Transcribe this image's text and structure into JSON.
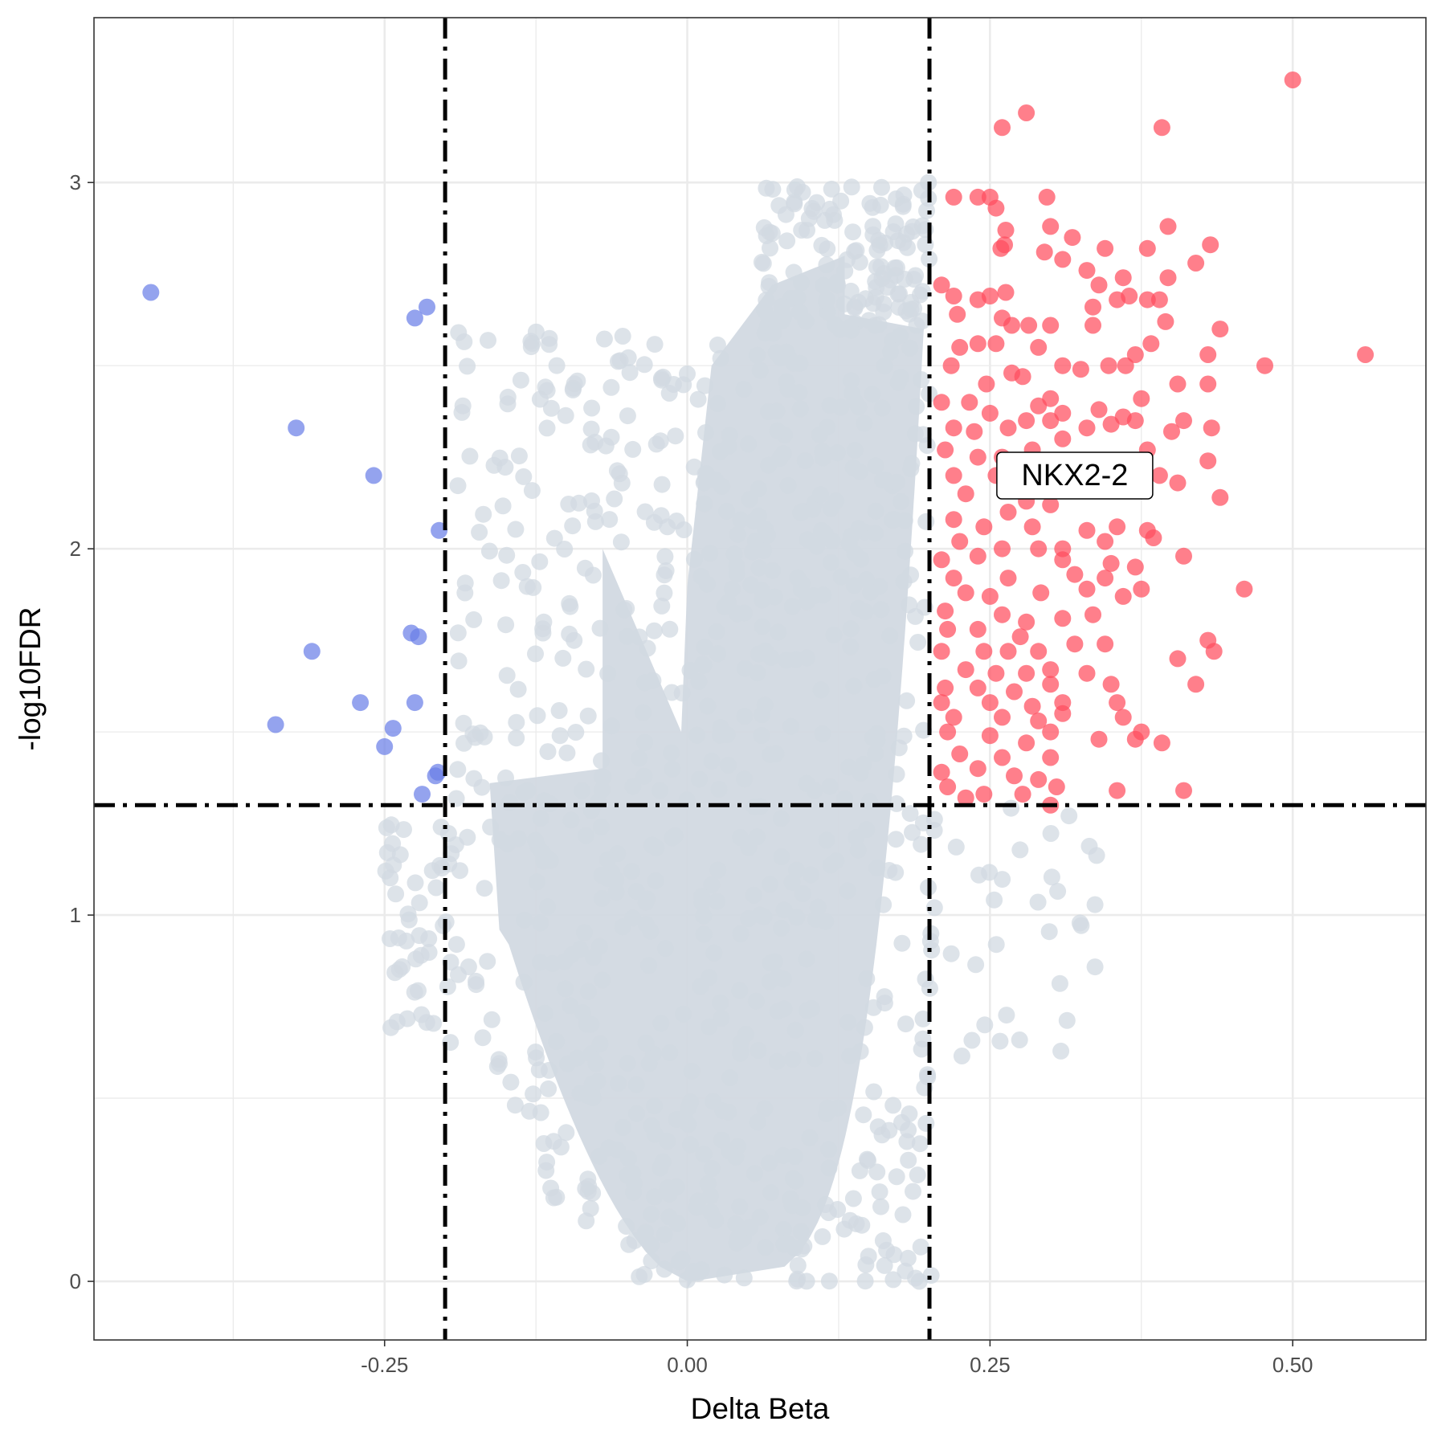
{
  "chart_data": {
    "type": "scatter",
    "title": "",
    "xlabel": "Delta Beta",
    "ylabel": "-log10FDR",
    "xlim": [
      -0.49,
      0.61
    ],
    "ylim": [
      -0.16,
      3.45
    ],
    "x_ticks": [
      -0.25,
      0.0,
      0.25,
      0.5
    ],
    "x_tick_labels": [
      "-0.25",
      "0.00",
      "0.25",
      "0.50"
    ],
    "y_ticks": [
      0,
      1,
      2,
      3
    ],
    "y_tick_labels": [
      "0",
      "1",
      "2",
      "3"
    ],
    "grid": true,
    "legend": "none",
    "thresholds": {
      "delta_beta": [
        -0.2,
        0.2
      ],
      "neg_log10_fdr": 1.3
    },
    "colors": {
      "hypo": "#6b7fe8",
      "hyper": "#ff4d5e",
      "ns": "#d2d9e1",
      "grid": "#ebebeb",
      "threshold_line": "#000000"
    },
    "annotations": [
      {
        "label": "NKX2-2",
        "x": 0.32,
        "y": 2.2
      }
    ],
    "series": [
      {
        "name": "Hypomethylated",
        "color": "#6b7fe8",
        "points": [
          [
            -0.443,
            2.7
          ],
          [
            -0.323,
            2.33
          ],
          [
            -0.31,
            1.72
          ],
          [
            -0.34,
            1.52
          ],
          [
            -0.259,
            2.2
          ],
          [
            -0.27,
            1.58
          ],
          [
            -0.25,
            1.46
          ],
          [
            -0.243,
            1.51
          ],
          [
            -0.225,
            2.63
          ],
          [
            -0.215,
            2.66
          ],
          [
            -0.228,
            1.77
          ],
          [
            -0.222,
            1.76
          ],
          [
            -0.225,
            1.58
          ],
          [
            -0.205,
            2.05
          ],
          [
            -0.208,
            1.38
          ],
          [
            -0.206,
            1.39
          ],
          [
            -0.219,
            1.33
          ]
        ]
      },
      {
        "name": "Hypermethylated",
        "color": "#ff4d5e",
        "points": [
          [
            0.5,
            3.28
          ],
          [
            0.28,
            3.19
          ],
          [
            0.26,
            3.15
          ],
          [
            0.392,
            3.15
          ],
          [
            0.22,
            2.96
          ],
          [
            0.24,
            2.96
          ],
          [
            0.25,
            2.96
          ],
          [
            0.297,
            2.96
          ],
          [
            0.255,
            2.93
          ],
          [
            0.397,
            2.88
          ],
          [
            0.318,
            2.85
          ],
          [
            0.3,
            2.88
          ],
          [
            0.263,
            2.87
          ],
          [
            0.262,
            2.83
          ],
          [
            0.259,
            2.82
          ],
          [
            0.295,
            2.81
          ],
          [
            0.31,
            2.79
          ],
          [
            0.345,
            2.82
          ],
          [
            0.38,
            2.82
          ],
          [
            0.432,
            2.83
          ],
          [
            0.42,
            2.78
          ],
          [
            0.33,
            2.76
          ],
          [
            0.36,
            2.74
          ],
          [
            0.397,
            2.74
          ],
          [
            0.34,
            2.72
          ],
          [
            0.21,
            2.72
          ],
          [
            0.22,
            2.69
          ],
          [
            0.24,
            2.68
          ],
          [
            0.25,
            2.69
          ],
          [
            0.263,
            2.7
          ],
          [
            0.335,
            2.66
          ],
          [
            0.355,
            2.68
          ],
          [
            0.365,
            2.69
          ],
          [
            0.38,
            2.68
          ],
          [
            0.39,
            2.68
          ],
          [
            0.223,
            2.64
          ],
          [
            0.26,
            2.63
          ],
          [
            0.268,
            2.61
          ],
          [
            0.282,
            2.61
          ],
          [
            0.3,
            2.61
          ],
          [
            0.335,
            2.61
          ],
          [
            0.395,
            2.62
          ],
          [
            0.44,
            2.6
          ],
          [
            0.225,
            2.55
          ],
          [
            0.24,
            2.56
          ],
          [
            0.255,
            2.56
          ],
          [
            0.29,
            2.55
          ],
          [
            0.383,
            2.56
          ],
          [
            0.37,
            2.53
          ],
          [
            0.43,
            2.53
          ],
          [
            0.56,
            2.53
          ],
          [
            0.477,
            2.5
          ],
          [
            0.218,
            2.5
          ],
          [
            0.247,
            2.45
          ],
          [
            0.268,
            2.48
          ],
          [
            0.277,
            2.47
          ],
          [
            0.31,
            2.5
          ],
          [
            0.325,
            2.49
          ],
          [
            0.348,
            2.5
          ],
          [
            0.362,
            2.5
          ],
          [
            0.405,
            2.45
          ],
          [
            0.43,
            2.45
          ],
          [
            0.21,
            2.4
          ],
          [
            0.233,
            2.4
          ],
          [
            0.25,
            2.37
          ],
          [
            0.29,
            2.39
          ],
          [
            0.3,
            2.41
          ],
          [
            0.34,
            2.38
          ],
          [
            0.36,
            2.36
          ],
          [
            0.375,
            2.41
          ],
          [
            0.22,
            2.33
          ],
          [
            0.237,
            2.32
          ],
          [
            0.265,
            2.33
          ],
          [
            0.28,
            2.35
          ],
          [
            0.3,
            2.35
          ],
          [
            0.31,
            2.37
          ],
          [
            0.33,
            2.33
          ],
          [
            0.35,
            2.34
          ],
          [
            0.37,
            2.35
          ],
          [
            0.41,
            2.35
          ],
          [
            0.433,
            2.33
          ],
          [
            0.4,
            2.32
          ],
          [
            0.213,
            2.27
          ],
          [
            0.24,
            2.25
          ],
          [
            0.26,
            2.25
          ],
          [
            0.285,
            2.27
          ],
          [
            0.31,
            2.3
          ],
          [
            0.38,
            2.27
          ],
          [
            0.43,
            2.24
          ],
          [
            0.22,
            2.2
          ],
          [
            0.255,
            2.2
          ],
          [
            0.39,
            2.2
          ],
          [
            0.405,
            2.18
          ],
          [
            0.23,
            2.15
          ],
          [
            0.265,
            2.1
          ],
          [
            0.28,
            2.13
          ],
          [
            0.3,
            2.12
          ],
          [
            0.44,
            2.14
          ],
          [
            0.22,
            2.08
          ],
          [
            0.245,
            2.06
          ],
          [
            0.285,
            2.06
          ],
          [
            0.33,
            2.05
          ],
          [
            0.355,
            2.06
          ],
          [
            0.38,
            2.05
          ],
          [
            0.385,
            2.03
          ],
          [
            0.225,
            2.02
          ],
          [
            0.26,
            2.0
          ],
          [
            0.29,
            2.0
          ],
          [
            0.31,
            2.0
          ],
          [
            0.345,
            2.02
          ],
          [
            0.21,
            1.97
          ],
          [
            0.24,
            1.98
          ],
          [
            0.31,
            1.97
          ],
          [
            0.35,
            1.96
          ],
          [
            0.41,
            1.98
          ],
          [
            0.22,
            1.92
          ],
          [
            0.265,
            1.92
          ],
          [
            0.32,
            1.93
          ],
          [
            0.345,
            1.92
          ],
          [
            0.37,
            1.95
          ],
          [
            0.46,
            1.89
          ],
          [
            0.23,
            1.88
          ],
          [
            0.25,
            1.87
          ],
          [
            0.292,
            1.88
          ],
          [
            0.33,
            1.89
          ],
          [
            0.36,
            1.87
          ],
          [
            0.375,
            1.89
          ],
          [
            0.213,
            1.83
          ],
          [
            0.26,
            1.82
          ],
          [
            0.28,
            1.8
          ],
          [
            0.31,
            1.81
          ],
          [
            0.335,
            1.82
          ],
          [
            0.215,
            1.78
          ],
          [
            0.24,
            1.78
          ],
          [
            0.275,
            1.76
          ],
          [
            0.32,
            1.74
          ],
          [
            0.345,
            1.74
          ],
          [
            0.43,
            1.75
          ],
          [
            0.21,
            1.72
          ],
          [
            0.245,
            1.72
          ],
          [
            0.265,
            1.72
          ],
          [
            0.29,
            1.72
          ],
          [
            0.405,
            1.7
          ],
          [
            0.435,
            1.72
          ],
          [
            0.23,
            1.67
          ],
          [
            0.255,
            1.66
          ],
          [
            0.28,
            1.66
          ],
          [
            0.3,
            1.67
          ],
          [
            0.33,
            1.66
          ],
          [
            0.213,
            1.62
          ],
          [
            0.24,
            1.62
          ],
          [
            0.27,
            1.61
          ],
          [
            0.3,
            1.63
          ],
          [
            0.35,
            1.63
          ],
          [
            0.42,
            1.63
          ],
          [
            0.21,
            1.58
          ],
          [
            0.25,
            1.58
          ],
          [
            0.285,
            1.57
          ],
          [
            0.31,
            1.58
          ],
          [
            0.355,
            1.58
          ],
          [
            0.22,
            1.54
          ],
          [
            0.26,
            1.54
          ],
          [
            0.29,
            1.53
          ],
          [
            0.31,
            1.55
          ],
          [
            0.36,
            1.54
          ],
          [
            0.215,
            1.5
          ],
          [
            0.25,
            1.49
          ],
          [
            0.28,
            1.47
          ],
          [
            0.3,
            1.5
          ],
          [
            0.34,
            1.48
          ],
          [
            0.37,
            1.48
          ],
          [
            0.375,
            1.5
          ],
          [
            0.392,
            1.47
          ],
          [
            0.225,
            1.44
          ],
          [
            0.26,
            1.43
          ],
          [
            0.3,
            1.43
          ],
          [
            0.21,
            1.39
          ],
          [
            0.24,
            1.4
          ],
          [
            0.27,
            1.38
          ],
          [
            0.29,
            1.37
          ],
          [
            0.215,
            1.35
          ],
          [
            0.245,
            1.33
          ],
          [
            0.305,
            1.35
          ],
          [
            0.355,
            1.34
          ],
          [
            0.41,
            1.34
          ],
          [
            0.3,
            1.3
          ],
          [
            0.23,
            1.32
          ],
          [
            0.277,
            1.33
          ]
        ]
      }
    ]
  },
  "labels": {
    "x_axis_title": "Delta Beta",
    "y_axis_title": "-log10FDR",
    "annotation": "NKX2-2"
  }
}
